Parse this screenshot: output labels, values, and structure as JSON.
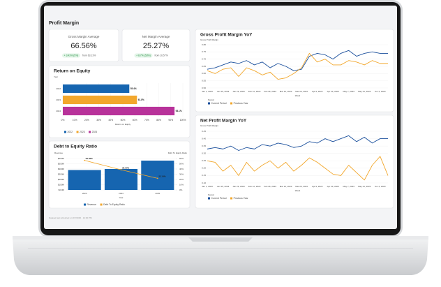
{
  "header": {
    "title": "Profit Margin",
    "footer": "Dataset last refreshed on 6/7/2025 · 12:00 PM"
  },
  "kpis": [
    {
      "label": "Gross Margin Average",
      "value": "66.56%",
      "change": "+ 3.43% (5%)",
      "from": "from 63.13%"
    },
    {
      "label": "Net Margin Average",
      "value": "25.27%",
      "change": "+ 8.7% (53%)",
      "from": "from 16.57%"
    }
  ],
  "roe": {
    "type": "hbar",
    "title": "Return on Equity",
    "y_title": "Year",
    "x_title": "Return on Equity",
    "categories": [
      "2022",
      "2023",
      "2024"
    ],
    "values": [
      55.4,
      61.8,
      93.1
    ],
    "value_labels": [
      "55.4%",
      "61.8%",
      "93.1%"
    ],
    "colors": [
      "#1665b0",
      "#f2a72c",
      "#b8329a"
    ],
    "xlim": [
      0,
      100
    ],
    "xticks": [
      {
        "value": 0,
        "label": "0%"
      },
      {
        "value": 10,
        "label": "10%"
      },
      {
        "value": 20,
        "label": "20%"
      },
      {
        "value": 30,
        "label": "30%"
      },
      {
        "value": 40,
        "label": "40%"
      },
      {
        "value": 50,
        "label": "50%"
      },
      {
        "value": 60,
        "label": "60%"
      },
      {
        "value": 70,
        "label": "70%"
      },
      {
        "value": 80,
        "label": "80%"
      },
      {
        "value": 90,
        "label": "90%"
      },
      {
        "value": 100,
        "label": "100%"
      }
    ]
  },
  "debt": {
    "type": "combo",
    "title": "Debt to Equity Ratio",
    "y_title": "Revenue",
    "y2_title": "Debt To Equity Ratio",
    "x_title": "Year",
    "categories": [
      "2023",
      "2024",
      "2025"
    ],
    "series": [
      {
        "name": "Revenue",
        "color": "#1665b0",
        "values": [
          380,
          400,
          560
        ]
      },
      {
        "name": "Debt To Equity Ratio",
        "color": "#f2a72c",
        "axis": "y2",
        "values": [
          56.46,
          38.5,
          22.14
        ],
        "value_labels": [
          "56.46%",
          "38.50%",
          "22.14%"
        ]
      }
    ],
    "ylim": [
      0,
      600
    ],
    "yticks": [
      {
        "value": 0,
        "label": "$0.0M"
      },
      {
        "value": 100,
        "label": "$100M"
      },
      {
        "value": 200,
        "label": "$200M"
      },
      {
        "value": 300,
        "label": "$300M"
      },
      {
        "value": 400,
        "label": "$400M"
      },
      {
        "value": 500,
        "label": "$500M"
      },
      {
        "value": 600,
        "label": "$600M"
      }
    ],
    "y2lim": [
      0,
      60
    ],
    "y2ticks": [
      {
        "value": 0,
        "label": "0%"
      },
      {
        "value": 10,
        "label": "10%"
      },
      {
        "value": 20,
        "label": "20%"
      },
      {
        "value": 30,
        "label": "30%"
      },
      {
        "value": 40,
        "label": "40%"
      },
      {
        "value": 50,
        "label": "50%"
      },
      {
        "value": 60,
        "label": "60%"
      }
    ]
  },
  "gross": {
    "type": "line",
    "title": "Gross Profit Margin YoY",
    "y_title": "Gross Profit Margin",
    "x_title": "Week",
    "legend_title": "Period",
    "categories": [
      "Jan 1, 2023",
      null,
      "Jan 15, 2023",
      null,
      "Jan 29, 2023",
      null,
      "Feb 12, 2023",
      null,
      "Feb 26, 2023",
      null,
      "Mar 12, 2023",
      null,
      "Mar 26, 2023",
      null,
      "Apr 9, 2023",
      null,
      "Apr 23, 2023",
      null,
      "May 7, 2023",
      null,
      "May 21, 2023",
      null,
      "Jun 4, 2023",
      null
    ],
    "series": [
      {
        "name": "Current Period",
        "color": "#1a4f9c",
        "values": [
          0.63,
          0.64,
          0.66,
          0.68,
          0.67,
          0.69,
          0.66,
          0.68,
          0.64,
          0.67,
          0.65,
          0.62,
          0.63,
          0.72,
          0.74,
          0.73,
          0.7,
          0.74,
          0.76,
          0.72,
          0.74,
          0.75,
          0.74,
          0.74
        ]
      },
      {
        "name": "Previous Year",
        "color": "#f2a72c",
        "values": [
          0.62,
          0.6,
          0.63,
          0.64,
          0.58,
          0.64,
          0.62,
          0.59,
          0.61,
          0.56,
          0.57,
          0.6,
          0.64,
          0.74,
          0.68,
          0.7,
          0.66,
          0.66,
          0.69,
          0.68,
          0.66,
          0.69,
          0.67,
          0.67
        ]
      }
    ],
    "ylim": [
      0.5,
      0.8
    ],
    "yticks": [
      {
        "value": 0.5,
        "label": "0.50"
      },
      {
        "value": 0.55,
        "label": "0.55"
      },
      {
        "value": 0.6,
        "label": "0.60"
      },
      {
        "value": 0.65,
        "label": "0.65"
      },
      {
        "value": 0.7,
        "label": "0.70"
      },
      {
        "value": 0.75,
        "label": "0.75"
      },
      {
        "value": 0.8,
        "label": "0.80"
      }
    ]
  },
  "net": {
    "type": "line",
    "title": "Net Profit Margin YoY",
    "y_title": "Gross Profit Margin",
    "x_title": "Week",
    "legend_title": "Period",
    "categories": [
      "Jan 1, 2023",
      null,
      "Jan 15, 2023",
      null,
      "Jan 29, 2023",
      null,
      "Feb 12, 2023",
      null,
      "Feb 26, 2023",
      null,
      "Mar 12, 2023",
      null,
      "Mar 26, 2023",
      null,
      "Apr 9, 2023",
      null,
      "Apr 23, 2023",
      null,
      "May 7, 2023",
      null,
      "May 21, 2023",
      null,
      "Jun 4, 2023",
      null
    ],
    "series": [
      {
        "name": "Current Period",
        "color": "#1a4f9c",
        "values": [
          0.33,
          0.34,
          0.33,
          0.35,
          0.32,
          0.34,
          0.33,
          0.36,
          0.35,
          0.37,
          0.36,
          0.34,
          0.35,
          0.38,
          0.37,
          0.4,
          0.38,
          0.4,
          0.42,
          0.38,
          0.41,
          0.37,
          0.4,
          0.4
        ]
      },
      {
        "name": "Previous Year",
        "color": "#f2a72c",
        "values": [
          0.25,
          0.24,
          0.18,
          0.22,
          0.15,
          0.24,
          0.18,
          0.22,
          0.25,
          0.2,
          0.24,
          0.18,
          0.22,
          0.27,
          0.24,
          0.2,
          0.16,
          0.15,
          0.22,
          0.17,
          0.12,
          0.22,
          0.28,
          0.15
        ]
      }
    ],
    "ylim": [
      0.1,
      0.45
    ],
    "yticks": [
      {
        "value": 0.1,
        "label": "0.10"
      },
      {
        "value": 0.15,
        "label": "0.15"
      },
      {
        "value": 0.2,
        "label": "0.20"
      },
      {
        "value": 0.25,
        "label": "0.25"
      },
      {
        "value": 0.3,
        "label": "0.30"
      },
      {
        "value": 0.35,
        "label": "0.35"
      },
      {
        "value": 0.4,
        "label": "0.40"
      },
      {
        "value": 0.45,
        "label": "0.45"
      }
    ]
  }
}
